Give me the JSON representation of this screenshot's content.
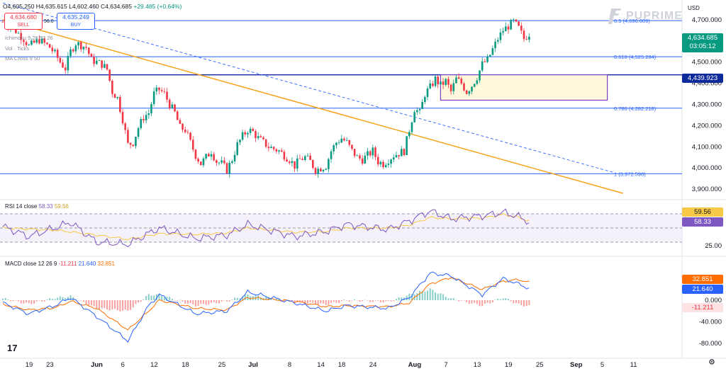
{
  "header": {
    "ohlc": "O4,605.250 H4,635.615 L4,602.460 C4,634.685",
    "change": "+29.485 (+0.64%)"
  },
  "trade": {
    "sell_price": "4,634.680",
    "sell_label": "SELL",
    "spread": "56.0",
    "buy_price": "4,635.249",
    "buy_label": "BUY"
  },
  "indicators": {
    "ichimoku": "Ichimoku 9 26 52 26",
    "vol": "Vol · Ticks",
    "ma": "MA Cross 9 50"
  },
  "brand": {
    "logo_text": "PUPRIME",
    "currency": "USD"
  },
  "price_tags": {
    "current": "4,634.685",
    "countdown": "03:05:12",
    "line": "4,439.923"
  },
  "fib_levels": [
    {
      "label": "0.5 (4,696.009)",
      "price": 4696.009
    },
    {
      "label": "0.618 (4,525.284)",
      "price": 4525.284
    },
    {
      "label": "0.786 (4,282.218)",
      "price": 4282.218
    },
    {
      "label": "1 (3,972.598)",
      "price": 3972.598
    }
  ],
  "horizontal_line": {
    "price": 4439.923
  },
  "colors": {
    "up": "#089981",
    "down": "#f23645",
    "fib": "#2962ff",
    "trend": "#f7a21b",
    "rsi": "#7e57c2",
    "rsi_ma": "#f7c948",
    "macd": "#2962ff",
    "signal": "#ff6d00",
    "box": "#7b3fc4"
  },
  "rsi_pane": {
    "title": "RSI 14 close",
    "value": "58.33",
    "ma_value": "59.56",
    "levels": [
      70,
      50,
      30
    ],
    "tick_labels": [
      "25.00"
    ]
  },
  "macd_pane": {
    "title": "MACD close 12 26 9",
    "hist_value": "-11.211",
    "macd_value": "21.640",
    "signal_value": "32.851",
    "tick_labels": [
      "0.000",
      "-40.000",
      "-80.000"
    ]
  },
  "tv_logo": "17",
  "chart_data": {
    "type": "candlestick",
    "price_axis": {
      "ylim": [
        3850,
        4780
      ],
      "ticks": [
        "4,700.000",
        "4,600.000",
        "4,500.000",
        "4,400.000",
        "4,300.000",
        "4,200.000",
        "4,100.000",
        "4,000.000",
        "3,900.000"
      ]
    },
    "x_labels": [
      {
        "label": "19",
        "day": 0
      },
      {
        "label": "23",
        "day": 4
      },
      {
        "label": "Jun",
        "day": 13
      },
      {
        "label": "6",
        "day": 18
      },
      {
        "label": "12",
        "day": 24
      },
      {
        "label": "18",
        "day": 30
      },
      {
        "label": "25",
        "day": 37
      },
      {
        "label": "Jul",
        "day": 43
      },
      {
        "label": "8",
        "day": 50
      },
      {
        "label": "14",
        "day": 56
      },
      {
        "label": "18",
        "day": 60
      },
      {
        "label": "24",
        "day": 66
      },
      {
        "label": "Aug",
        "day": 74
      },
      {
        "label": "7",
        "day": 80
      },
      {
        "label": "13",
        "day": 86
      },
      {
        "label": "19",
        "day": 92
      },
      {
        "label": "25",
        "day": 98
      },
      {
        "label": "Sep",
        "day": 105
      },
      {
        "label": "5",
        "day": 110
      },
      {
        "label": "11",
        "day": 116
      }
    ],
    "close_path": [
      [
        0,
        4690
      ],
      [
        2,
        4660
      ],
      [
        4,
        4610
      ],
      [
        5,
        4575
      ],
      [
        7,
        4605
      ],
      [
        9,
        4570
      ],
      [
        10,
        4540
      ],
      [
        11,
        4500
      ],
      [
        12,
        4470
      ],
      [
        13,
        4550
      ],
      [
        14,
        4590
      ],
      [
        16,
        4570
      ],
      [
        17,
        4510
      ],
      [
        19,
        4490
      ],
      [
        20,
        4465
      ],
      [
        21,
        4360
      ],
      [
        22,
        4330
      ],
      [
        23,
        4230
      ],
      [
        24,
        4110
      ],
      [
        25,
        4120
      ],
      [
        26,
        4190
      ],
      [
        27,
        4240
      ],
      [
        28,
        4260
      ],
      [
        29,
        4350
      ],
      [
        30,
        4370
      ],
      [
        31,
        4350
      ],
      [
        32,
        4300
      ],
      [
        33,
        4260
      ],
      [
        34,
        4190
      ],
      [
        35,
        4180
      ],
      [
        36,
        4120
      ],
      [
        37,
        4060
      ],
      [
        38,
        4020
      ],
      [
        39,
        4050
      ],
      [
        40,
        4080
      ],
      [
        41,
        4030
      ],
      [
        42,
        4020
      ],
      [
        43,
        3990
      ],
      [
        44,
        4040
      ],
      [
        45,
        4110
      ],
      [
        46,
        4150
      ],
      [
        47,
        4180
      ],
      [
        48,
        4170
      ],
      [
        49,
        4140
      ],
      [
        50,
        4120
      ],
      [
        51,
        4100
      ],
      [
        52,
        4090
      ],
      [
        53,
        4080
      ],
      [
        54,
        4060
      ],
      [
        55,
        4040
      ],
      [
        56,
        4010
      ],
      [
        57,
        4040
      ],
      [
        58,
        4050
      ],
      [
        59,
        4030
      ],
      [
        60,
        3990
      ],
      [
        61,
        4000
      ],
      [
        62,
        4010
      ],
      [
        63,
        4080
      ],
      [
        64,
        4120
      ],
      [
        65,
        4140
      ],
      [
        66,
        4120
      ],
      [
        67,
        4080
      ],
      [
        68,
        4050
      ],
      [
        69,
        4040
      ],
      [
        70,
        4060
      ],
      [
        71,
        4080
      ],
      [
        72,
        4030
      ],
      [
        73,
        4020
      ],
      [
        74,
        4040
      ],
      [
        75,
        4060
      ],
      [
        76,
        4070
      ],
      [
        77,
        4080
      ],
      [
        78,
        4180
      ],
      [
        79,
        4280
      ],
      [
        80,
        4260
      ],
      [
        81,
        4350
      ],
      [
        82,
        4380
      ],
      [
        83,
        4420
      ],
      [
        84,
        4390
      ],
      [
        85,
        4410
      ],
      [
        86,
        4360
      ],
      [
        87,
        4420
      ],
      [
        88,
        4400
      ],
      [
        89,
        4360
      ],
      [
        90,
        4390
      ],
      [
        91,
        4430
      ],
      [
        92,
        4490
      ],
      [
        93,
        4510
      ],
      [
        94,
        4560
      ],
      [
        95,
        4610
      ],
      [
        96,
        4650
      ],
      [
        97,
        4670
      ],
      [
        98,
        4690
      ],
      [
        99,
        4660
      ],
      [
        100,
        4610
      ],
      [
        101,
        4634.685
      ]
    ],
    "rsi_path": [
      [
        0,
        52
      ],
      [
        5,
        38
      ],
      [
        10,
        50
      ],
      [
        13,
        58
      ],
      [
        18,
        30
      ],
      [
        24,
        27
      ],
      [
        30,
        50
      ],
      [
        37,
        35
      ],
      [
        43,
        40
      ],
      [
        47,
        55
      ],
      [
        56,
        38
      ],
      [
        62,
        45
      ],
      [
        66,
        55
      ],
      [
        74,
        48
      ],
      [
        78,
        60
      ],
      [
        82,
        74
      ],
      [
        86,
        63
      ],
      [
        92,
        67
      ],
      [
        96,
        72
      ],
      [
        99,
        66
      ],
      [
        101,
        58.33
      ]
    ],
    "rsi_ma_path": [
      [
        0,
        50
      ],
      [
        10,
        47
      ],
      [
        18,
        40
      ],
      [
        24,
        34
      ],
      [
        30,
        42
      ],
      [
        37,
        41
      ],
      [
        43,
        43
      ],
      [
        47,
        50
      ],
      [
        56,
        44
      ],
      [
        62,
        45
      ],
      [
        66,
        50
      ],
      [
        74,
        50
      ],
      [
        78,
        54
      ],
      [
        82,
        65
      ],
      [
        86,
        63
      ],
      [
        92,
        64
      ],
      [
        96,
        69
      ],
      [
        99,
        65
      ],
      [
        101,
        59.56
      ]
    ],
    "macd_path": [
      [
        0,
        -5
      ],
      [
        5,
        -25
      ],
      [
        10,
        -10
      ],
      [
        13,
        5
      ],
      [
        18,
        -30
      ],
      [
        24,
        -75
      ],
      [
        28,
        -10
      ],
      [
        30,
        10
      ],
      [
        37,
        -25
      ],
      [
        43,
        -20
      ],
      [
        47,
        15
      ],
      [
        56,
        -5
      ],
      [
        62,
        -20
      ],
      [
        66,
        -10
      ],
      [
        74,
        -15
      ],
      [
        78,
        5
      ],
      [
        82,
        50
      ],
      [
        86,
        45
      ],
      [
        92,
        10
      ],
      [
        96,
        40
      ],
      [
        99,
        30
      ],
      [
        101,
        21.64
      ]
    ],
    "signal_path": [
      [
        0,
        -8
      ],
      [
        5,
        -18
      ],
      [
        10,
        -14
      ],
      [
        13,
        -2
      ],
      [
        18,
        -15
      ],
      [
        24,
        -55
      ],
      [
        28,
        -20
      ],
      [
        30,
        0
      ],
      [
        37,
        -15
      ],
      [
        43,
        -18
      ],
      [
        47,
        5
      ],
      [
        56,
        -2
      ],
      [
        62,
        -12
      ],
      [
        66,
        -10
      ],
      [
        74,
        -12
      ],
      [
        78,
        -5
      ],
      [
        82,
        30
      ],
      [
        86,
        42
      ],
      [
        92,
        20
      ],
      [
        96,
        35
      ],
      [
        99,
        38
      ],
      [
        101,
        32.851
      ]
    ]
  }
}
